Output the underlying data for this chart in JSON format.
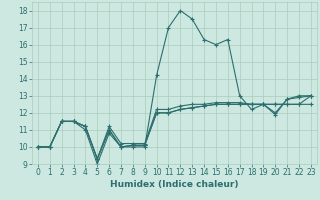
{
  "xlabel": "Humidex (Indice chaleur)",
  "xlim": [
    -0.5,
    23.5
  ],
  "ylim": [
    9,
    18.5
  ],
  "yticks": [
    9,
    10,
    11,
    12,
    13,
    14,
    15,
    16,
    17,
    18
  ],
  "xticks": [
    0,
    1,
    2,
    3,
    4,
    5,
    6,
    7,
    8,
    9,
    10,
    11,
    12,
    13,
    14,
    15,
    16,
    17,
    18,
    19,
    20,
    21,
    22,
    23
  ],
  "bg_color": "#cce8e0",
  "grid_color": "#aaccbb",
  "line_color": "#2d6e6e",
  "lines": [
    [
      10,
      10,
      11.5,
      11.5,
      11,
      9.0,
      10.8,
      10,
      10,
      10,
      14.2,
      17,
      18,
      17.5,
      16.3,
      16,
      16.3,
      13,
      12.2,
      12.5,
      12,
      12.8,
      13,
      13
    ],
    [
      10,
      10,
      11.5,
      11.5,
      11.2,
      9.3,
      11.0,
      10,
      10.1,
      10.1,
      12.0,
      12.0,
      12.2,
      12.3,
      12.4,
      12.5,
      12.5,
      12.5,
      12.5,
      12.5,
      12.5,
      12.5,
      12.5,
      12.5
    ],
    [
      10,
      10,
      11.5,
      11.5,
      11.2,
      9.3,
      11.0,
      10,
      10.1,
      10.1,
      12.0,
      12.0,
      12.2,
      12.3,
      12.4,
      12.5,
      12.5,
      12.5,
      12.5,
      12.5,
      12.5,
      12.5,
      12.5,
      13.0
    ],
    [
      10,
      10,
      11.5,
      11.5,
      11.2,
      9.3,
      11.2,
      10.2,
      10.2,
      10.2,
      12.2,
      12.2,
      12.4,
      12.5,
      12.5,
      12.6,
      12.6,
      12.6,
      12.5,
      12.5,
      11.9,
      12.8,
      12.9,
      13.0
    ]
  ]
}
